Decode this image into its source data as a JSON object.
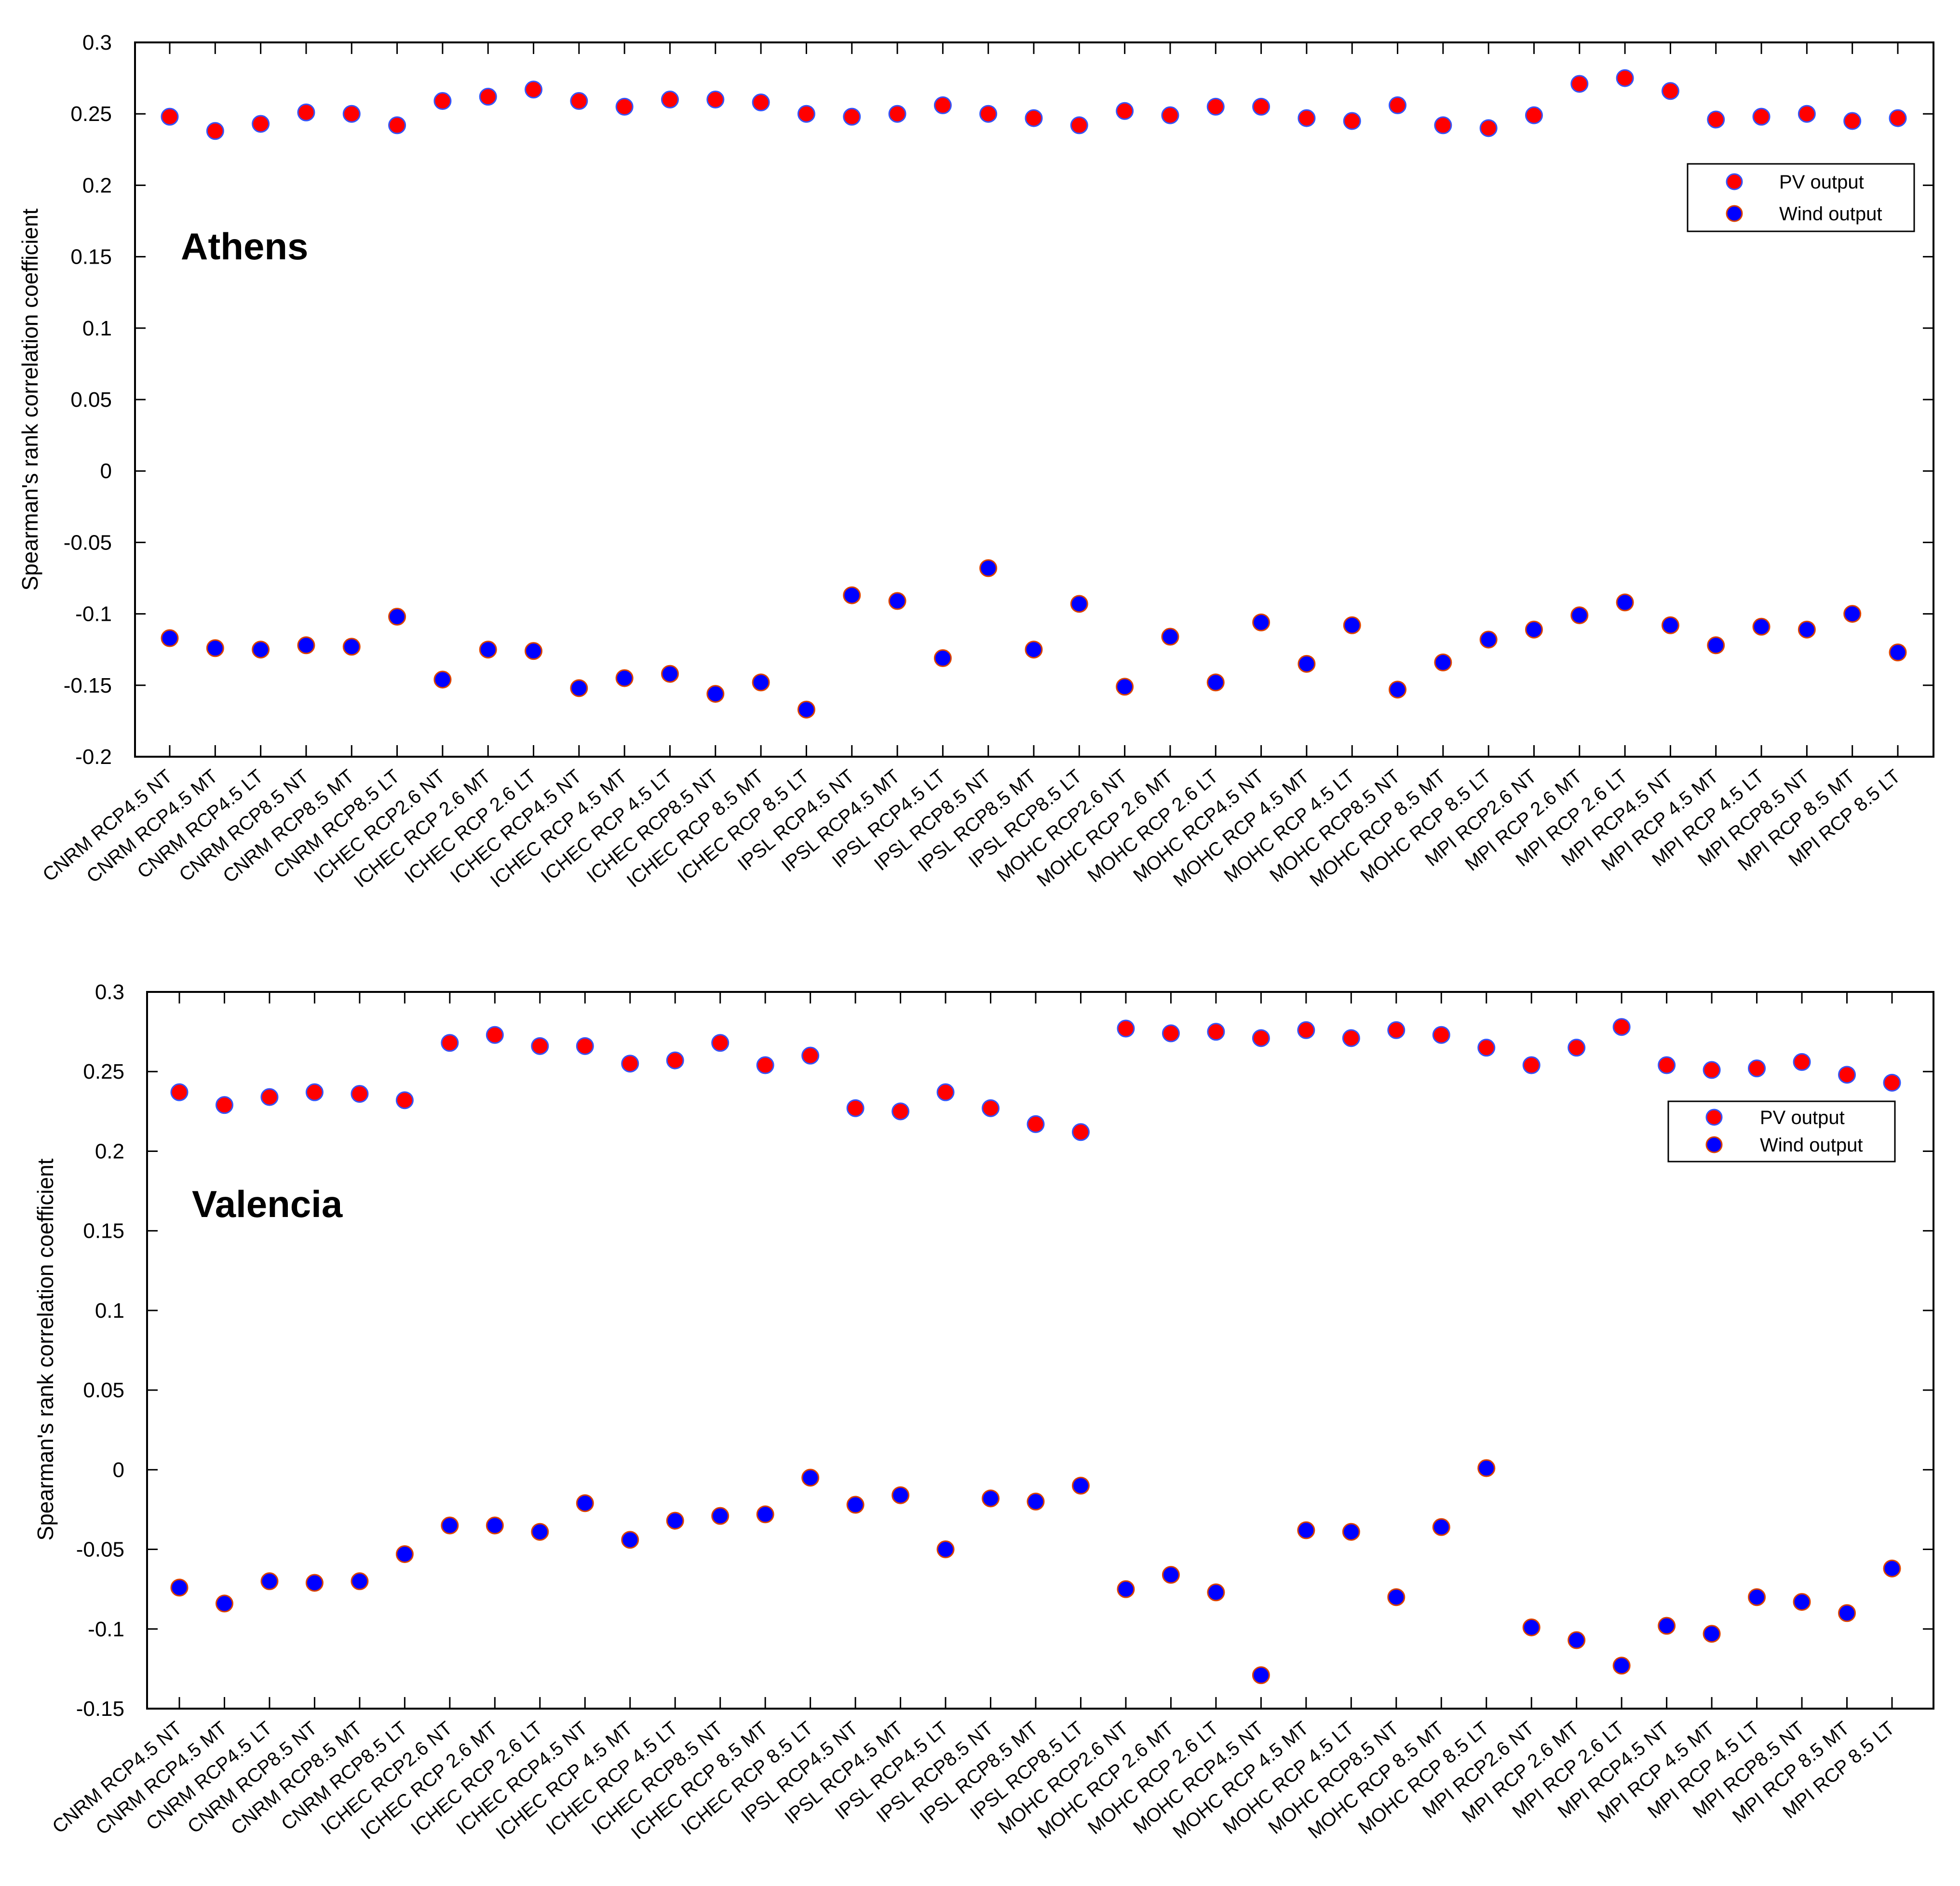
{
  "chart_data": [
    {
      "type": "scatter",
      "title": "Athens",
      "ylabel": "Spearman's rank correlation coefficient",
      "xlabel": "",
      "ylim": [
        -0.2,
        0.3
      ],
      "yticks": [
        "0.3",
        "0.25",
        "0.2",
        "0.15",
        "0.1",
        "0.05",
        "0",
        "-0.05",
        "-0.1",
        "-0.15",
        "-0.2"
      ],
      "legend_position": "top-right",
      "categories": [
        "CNRM RCP4.5 NT",
        "CNRM RCP4.5 MT",
        "CNRM RCP4.5 LT",
        "CNRM RCP8.5 NT",
        "CNRM RCP8.5 MT",
        "CNRM RCP8.5 LT",
        "ICHEC RCP2.6 NT",
        "ICHEC RCP 2.6 MT",
        "ICHEC RCP 2.6 LT",
        "ICHEC RCP4.5 NT",
        "ICHEC RCP 4.5 MT",
        "ICHEC RCP 4.5 LT",
        "ICHEC RCP8.5 NT",
        "ICHEC RCP 8.5 MT",
        "ICHEC RCP 8.5 LT",
        "IPSL RCP4.5 NT",
        "IPSL RCP4.5 MT",
        "IPSL RCP4.5 LT",
        "IPSL RCP8.5 NT",
        "IPSL RCP8.5 MT",
        "IPSL RCP8.5 LT",
        "MOHC RCP2.6 NT",
        "MOHC RCP 2.6 MT",
        "MOHC RCP 2.6 LT",
        "MOHC RCP4.5 NT",
        "MOHC RCP 4.5 MT",
        "MOHC RCP 4.5 LT",
        "MOHC RCP8.5 NT",
        "MOHC RCP 8.5 MT",
        "MOHC RCP 8.5 LT",
        "MPI RCP2.6 NT",
        "MPI RCP 2.6 MT",
        "MPI RCP 2.6 LT",
        "MPI RCP4.5 NT",
        "MPI RCP 4.5 MT",
        "MPI RCP 4.5 LT",
        "MPI RCP8.5 NT",
        "MPI RCP 8.5 MT",
        "MPI RCP 8.5 LT"
      ],
      "series": [
        {
          "name": "PV output",
          "color": "#ff0000",
          "values": [
            0.248,
            0.238,
            0.243,
            0.251,
            0.25,
            0.242,
            0.259,
            0.262,
            0.267,
            0.259,
            0.255,
            0.26,
            0.26,
            0.258,
            0.25,
            0.248,
            0.25,
            0.256,
            0.25,
            0.247,
            0.242,
            0.252,
            0.249,
            0.255,
            0.255,
            0.247,
            0.245,
            0.256,
            0.242,
            0.24,
            0.249,
            0.271,
            0.275,
            0.266,
            0.246,
            0.248,
            0.25,
            0.245,
            0.247
          ]
        },
        {
          "name": "Wind output",
          "color": "#0000ff",
          "values": [
            -0.117,
            -0.124,
            -0.125,
            -0.122,
            -0.123,
            -0.102,
            -0.146,
            -0.125,
            -0.126,
            -0.152,
            -0.145,
            -0.142,
            -0.156,
            -0.148,
            -0.167,
            -0.087,
            -0.091,
            -0.131,
            -0.068,
            -0.125,
            -0.093,
            -0.151,
            -0.116,
            -0.148,
            -0.106,
            -0.135,
            -0.108,
            -0.153,
            -0.134,
            -0.118,
            -0.111,
            -0.101,
            -0.092,
            -0.108,
            -0.122,
            -0.109,
            -0.111,
            -0.1,
            -0.127
          ]
        }
      ]
    },
    {
      "type": "scatter",
      "title": "Valencia",
      "ylabel": "Spearman's rank correlation coefficient",
      "xlabel": "",
      "ylim": [
        -0.15,
        0.3
      ],
      "yticks": [
        "0.3",
        "0.25",
        "0.2",
        "0.15",
        "0.1",
        "0.05",
        "0",
        "-0.05",
        "-0.1",
        "-0.15"
      ],
      "legend_position": "top-right",
      "categories": [
        "CNRM RCP4.5 NT",
        "CNRM RCP4.5 MT",
        "CNRM RCP4.5 LT",
        "CNRM RCP8.5 NT",
        "CNRM RCP8.5 MT",
        "CNRM RCP8.5 LT",
        "ICHEC RCP2.6 NT",
        "ICHEC RCP 2.6 MT",
        "ICHEC RCP 2.6 LT",
        "ICHEC RCP4.5 NT",
        "ICHEC RCP 4.5 MT",
        "ICHEC RCP 4.5 LT",
        "ICHEC RCP8.5 NT",
        "ICHEC RCP 8.5 MT",
        "ICHEC RCP 8.5 LT",
        "IPSL RCP4.5 NT",
        "IPSL RCP4.5 MT",
        "IPSL RCP4.5 LT",
        "IPSL RCP8.5 NT",
        "IPSL RCP8.5 MT",
        "IPSL RCP8.5 LT",
        "MOHC RCP2.6 NT",
        "MOHC RCP 2.6 MT",
        "MOHC RCP 2.6 LT",
        "MOHC RCP4.5 NT",
        "MOHC RCP 4.5 MT",
        "MOHC RCP 4.5 LT",
        "MOHC RCP8.5 NT",
        "MOHC RCP 8.5 MT",
        "MOHC RCP 8.5 LT",
        "MPI RCP2.6 NT",
        "MPI RCP 2.6 MT",
        "MPI RCP 2.6 LT",
        "MPI RCP4.5 NT",
        "MPI RCP 4.5 MT",
        "MPI RCP 4.5 LT",
        "MPI RCP8.5 NT",
        "MPI RCP 8.5 MT",
        "MPI RCP 8.5 LT"
      ],
      "series": [
        {
          "name": "PV output",
          "color": "#ff0000",
          "values": [
            0.237,
            0.229,
            0.234,
            0.237,
            0.236,
            0.232,
            0.268,
            0.273,
            0.266,
            0.266,
            0.255,
            0.257,
            0.268,
            0.254,
            0.26,
            0.227,
            0.225,
            0.237,
            0.227,
            0.217,
            0.212,
            0.277,
            0.274,
            0.275,
            0.271,
            0.276,
            0.271,
            0.276,
            0.273,
            0.265,
            0.254,
            0.265,
            0.278,
            0.254,
            0.251,
            0.252,
            0.256,
            0.248,
            0.243
          ]
        },
        {
          "name": "Wind output",
          "color": "#0000ff",
          "values": [
            -0.074,
            -0.084,
            -0.07,
            -0.071,
            -0.07,
            -0.053,
            -0.035,
            -0.035,
            -0.039,
            -0.021,
            -0.044,
            -0.032,
            -0.029,
            -0.028,
            -0.005,
            -0.022,
            -0.016,
            -0.05,
            -0.018,
            -0.02,
            -0.01,
            -0.075,
            -0.066,
            -0.077,
            -0.129,
            -0.038,
            -0.039,
            -0.08,
            -0.036,
            0.001,
            -0.099,
            -0.107,
            -0.123,
            -0.098,
            -0.103,
            -0.08,
            -0.083,
            -0.09,
            -0.062
          ]
        }
      ]
    }
  ]
}
